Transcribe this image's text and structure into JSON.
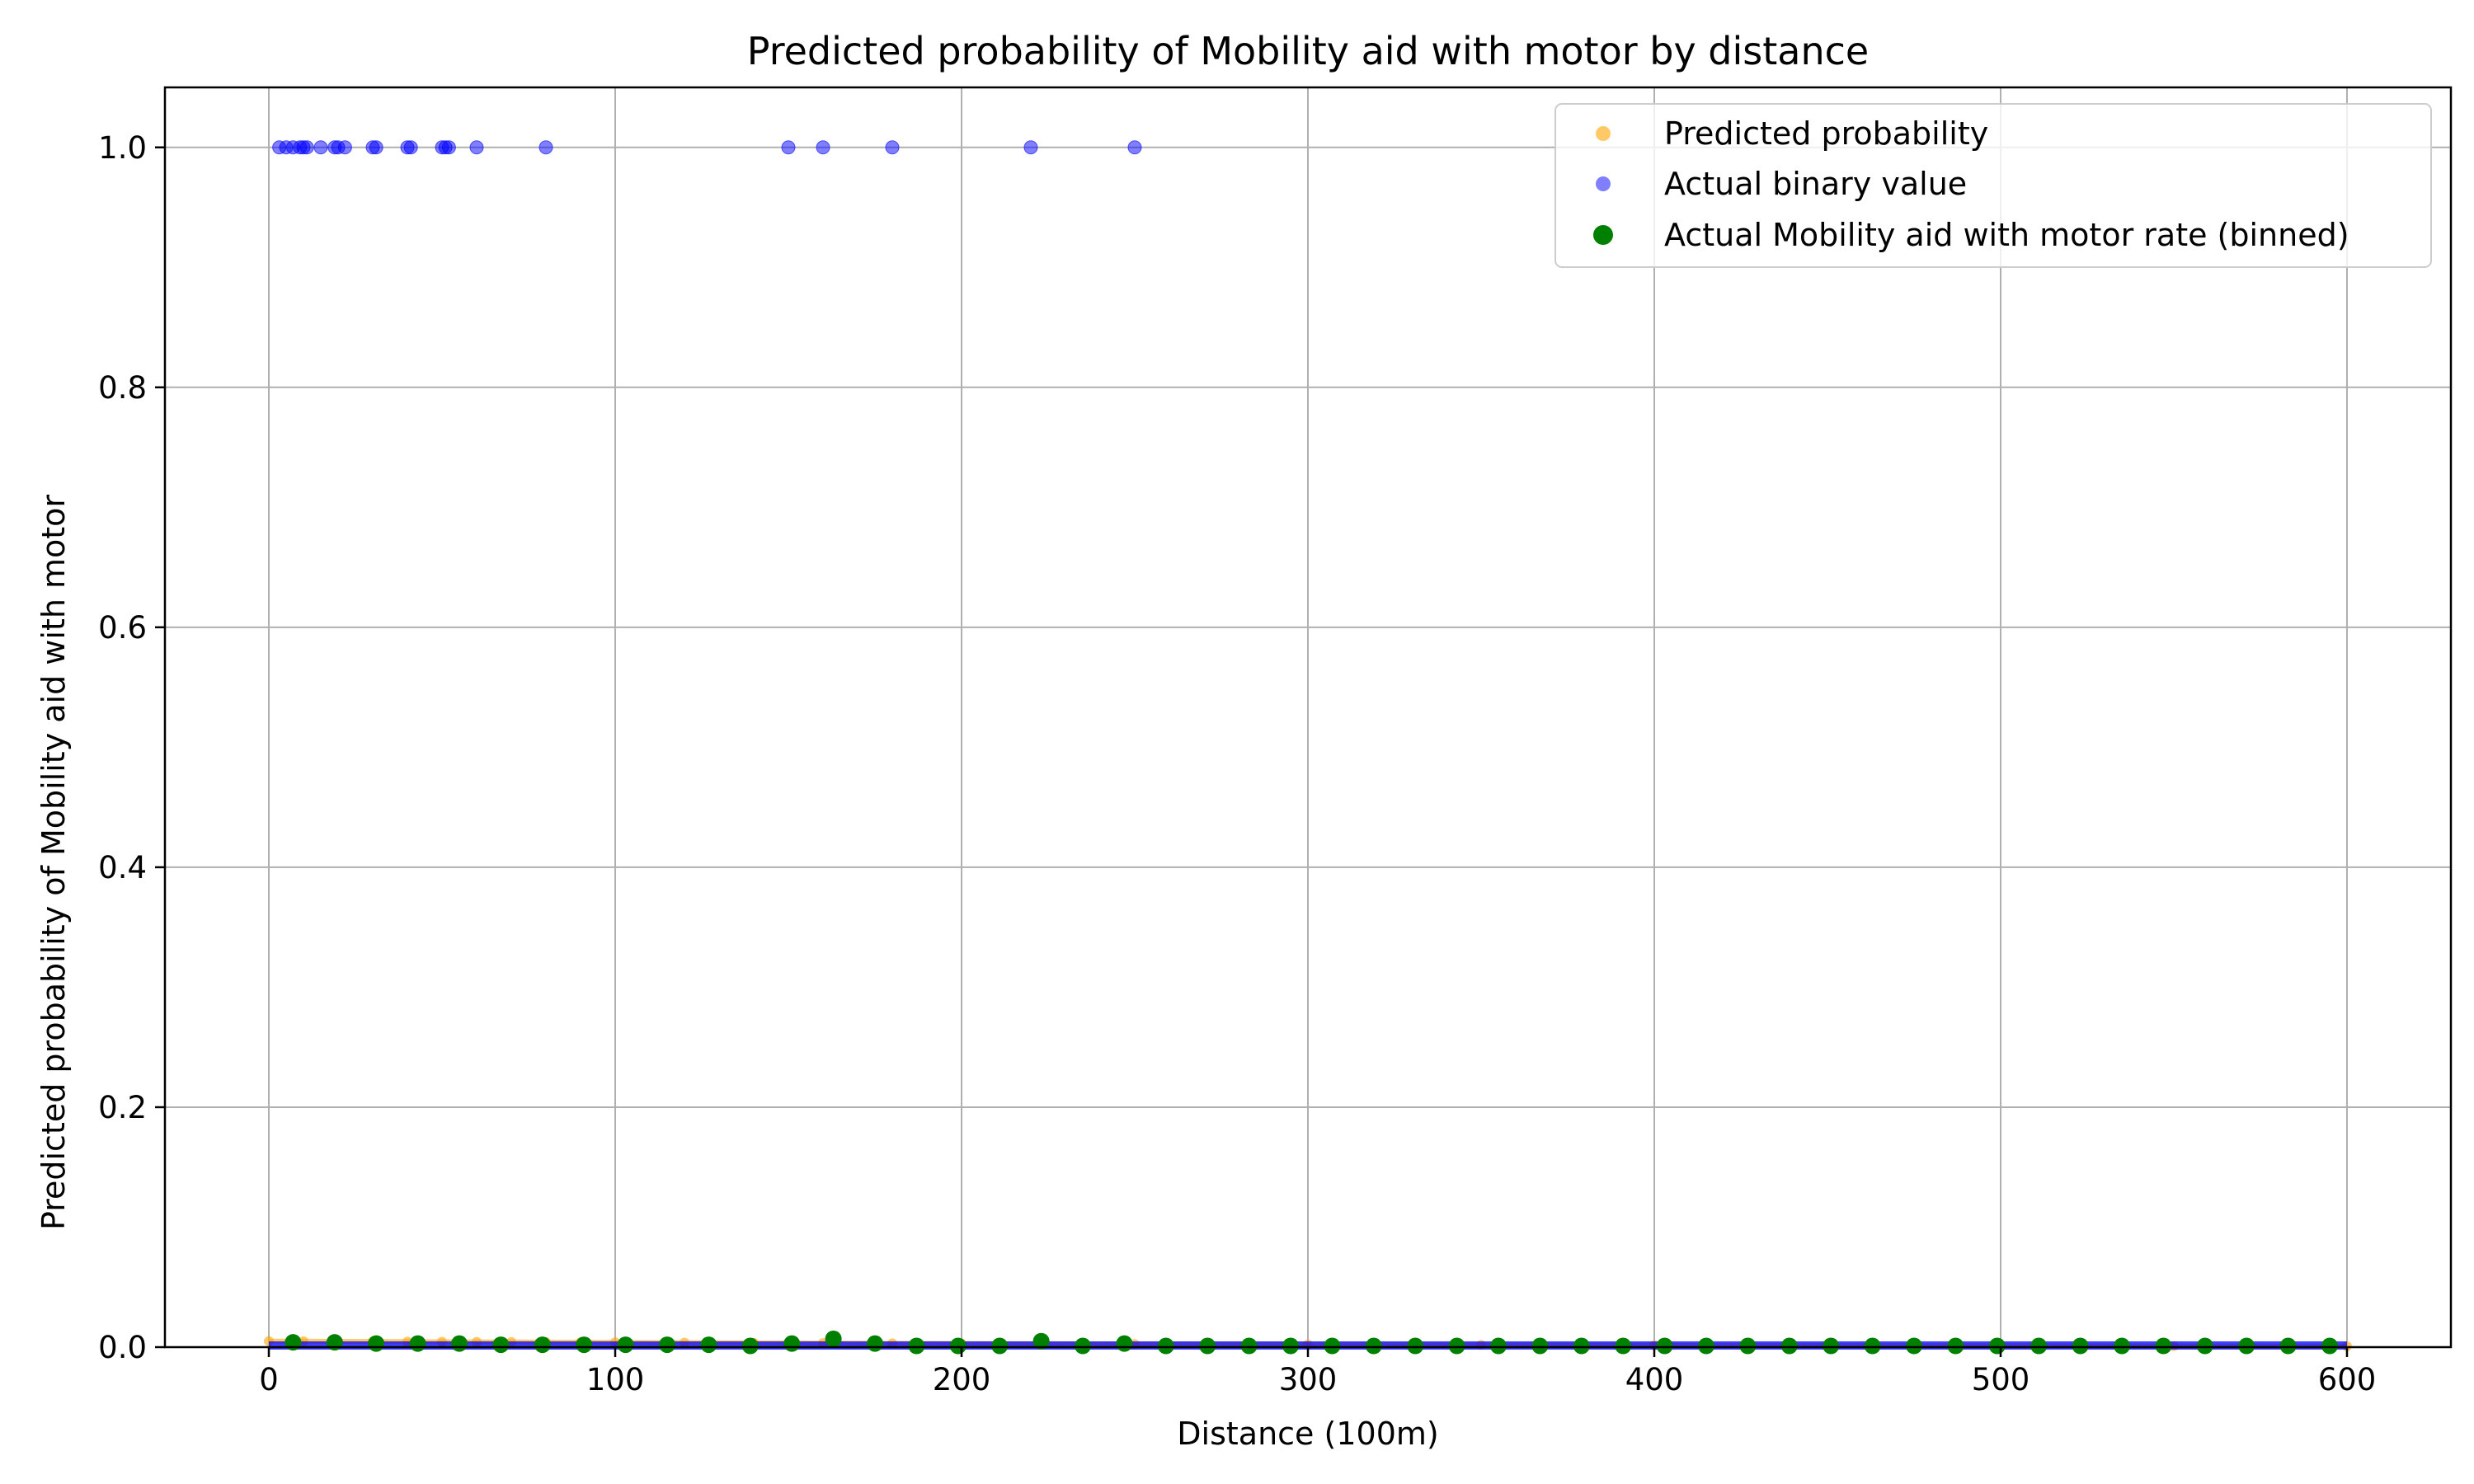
{
  "chart_data": {
    "type": "scatter",
    "title": "Predicted probability of Mobility aid with motor by distance",
    "xlabel": "Distance (100m)",
    "ylabel": "Predicted probability of Mobility aid with motor",
    "xlim": [
      -30,
      630
    ],
    "ylim": [
      0,
      1.05
    ],
    "xticks": [
      0,
      100,
      200,
      300,
      400,
      500,
      600
    ],
    "yticks": [
      0.0,
      0.2,
      0.4,
      0.6,
      0.8,
      1.0
    ],
    "xtick_labels": [
      "0",
      "100",
      "200",
      "300",
      "400",
      "500",
      "600"
    ],
    "ytick_labels": [
      "0.0",
      "0.2",
      "0.4",
      "0.6",
      "0.8",
      "1.0"
    ],
    "grid": true,
    "legend_position": "top-right",
    "series": [
      {
        "name": "Predicted probability",
        "color": "#ffa500",
        "marker": "small-dot",
        "x": [
          0,
          10,
          20,
          30,
          40,
          50,
          60,
          70,
          80,
          90,
          100,
          120,
          140,
          160,
          180,
          200,
          250,
          300,
          350,
          400,
          450,
          500,
          550,
          600
        ],
        "y": [
          0.005,
          0.0049,
          0.0048,
          0.0047,
          0.0046,
          0.0045,
          0.0044,
          0.0043,
          0.0042,
          0.0041,
          0.004,
          0.0038,
          0.0036,
          0.0034,
          0.0032,
          0.003,
          0.0026,
          0.0022,
          0.0019,
          0.0016,
          0.0013,
          0.0011,
          0.0009,
          0.0008
        ]
      },
      {
        "name": "Actual binary value",
        "color": "#0000ff",
        "marker": "small-dot",
        "x": [
          3,
          5,
          7,
          9,
          10,
          11,
          15,
          19,
          20,
          22,
          30,
          31,
          40,
          41,
          50,
          51,
          52,
          60,
          80,
          150,
          160,
          180,
          220,
          250
        ],
        "y": [
          1,
          1,
          1,
          1,
          1,
          1,
          1,
          1,
          1,
          1,
          1,
          1,
          1,
          1,
          1,
          1,
          1,
          1,
          1,
          1,
          1,
          1,
          1,
          1
        ],
        "zero_band_x": [
          0,
          600
        ]
      },
      {
        "name": "Actual Mobility aid with motor rate (binned)",
        "color": "#008000",
        "marker": "dot",
        "x": [
          7,
          19,
          31,
          43,
          55,
          67,
          79,
          91,
          103,
          115,
          127,
          139,
          151,
          163,
          175,
          187,
          199,
          211,
          223,
          235,
          247,
          259,
          271,
          283,
          295,
          307,
          319,
          331,
          343,
          355,
          367,
          379,
          391,
          403,
          415,
          427,
          439,
          451,
          463,
          475,
          487,
          499,
          511,
          523,
          535,
          547,
          559,
          571,
          583,
          595
        ],
        "y": [
          0.004,
          0.004,
          0.003,
          0.003,
          0.003,
          0.002,
          0.002,
          0.002,
          0.002,
          0.002,
          0.002,
          0.001,
          0.003,
          0.007,
          0.003,
          0.001,
          0.001,
          0.001,
          0.005,
          0.001,
          0.003,
          0.001,
          0.001,
          0.001,
          0.001,
          0.001,
          0.001,
          0.001,
          0.001,
          0.001,
          0.001,
          0.001,
          0.001,
          0.001,
          0.001,
          0.001,
          0.001,
          0.001,
          0.001,
          0.001,
          0.001,
          0.001,
          0.001,
          0.001,
          0.001,
          0.001,
          0.001,
          0.001,
          0.001,
          0.001
        ]
      }
    ]
  }
}
